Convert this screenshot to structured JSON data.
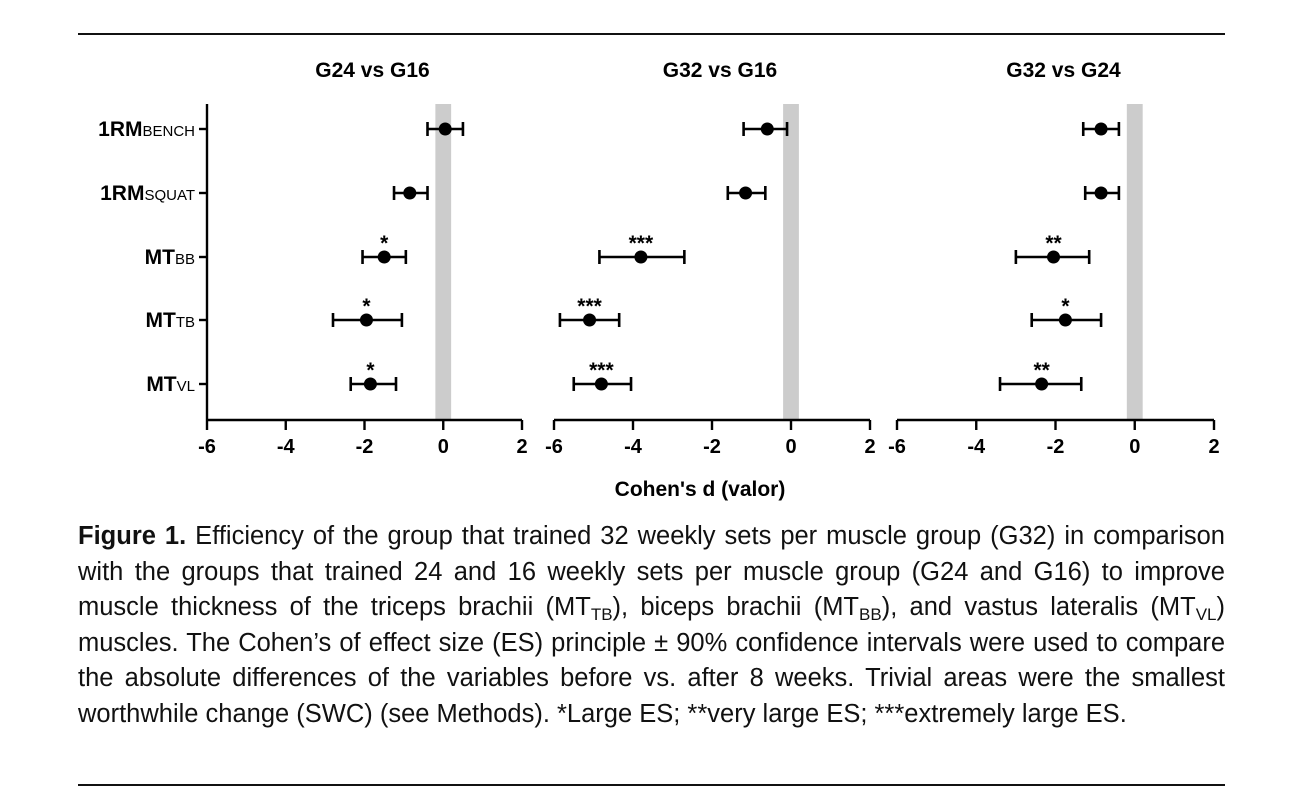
{
  "chart_data": {
    "type": "forest",
    "xlabel": "Cohen's d (valor)",
    "xlim": [
      -6,
      2
    ],
    "xticks": [
      "-6",
      "-4",
      "-2",
      "0",
      "2"
    ],
    "swc_band": [
      -0.2,
      0.2
    ],
    "rows": [
      {
        "main": "1RM",
        "sub": "BENCH"
      },
      {
        "main": "1RM",
        "sub": "SQUAT"
      },
      {
        "main": "MT",
        "sub": "BB"
      },
      {
        "main": "MT",
        "sub": "TB"
      },
      {
        "main": "MT",
        "sub": "VL"
      }
    ],
    "panels": [
      {
        "title": "G24 vs G16",
        "points": [
          {
            "d": 0.05,
            "lo": -0.4,
            "hi": 0.5,
            "sig": ""
          },
          {
            "d": -0.85,
            "lo": -1.25,
            "hi": -0.4,
            "sig": ""
          },
          {
            "d": -1.5,
            "lo": -2.05,
            "hi": -0.95,
            "sig": "*"
          },
          {
            "d": -1.95,
            "lo": -2.8,
            "hi": -1.05,
            "sig": "*"
          },
          {
            "d": -1.85,
            "lo": -2.35,
            "hi": -1.2,
            "sig": "*"
          }
        ]
      },
      {
        "title": "G32 vs G16",
        "points": [
          {
            "d": -0.6,
            "lo": -1.2,
            "hi": -0.1,
            "sig": ""
          },
          {
            "d": -1.15,
            "lo": -1.6,
            "hi": -0.65,
            "sig": ""
          },
          {
            "d": -3.8,
            "lo": -4.85,
            "hi": -2.7,
            "sig": "***"
          },
          {
            "d": -5.1,
            "lo": -5.85,
            "hi": -4.35,
            "sig": "***"
          },
          {
            "d": -4.8,
            "lo": -5.5,
            "hi": -4.05,
            "sig": "***"
          }
        ]
      },
      {
        "title": "G32 vs G24",
        "points": [
          {
            "d": -0.85,
            "lo": -1.3,
            "hi": -0.4,
            "sig": ""
          },
          {
            "d": -0.85,
            "lo": -1.25,
            "hi": -0.4,
            "sig": ""
          },
          {
            "d": -2.05,
            "lo": -3.0,
            "hi": -1.15,
            "sig": "**"
          },
          {
            "d": -1.75,
            "lo": -2.6,
            "hi": -0.85,
            "sig": "*"
          },
          {
            "d": -2.35,
            "lo": -3.4,
            "hi": -1.35,
            "sig": "**"
          }
        ]
      }
    ]
  },
  "caption": {
    "label": "Figure 1.",
    "t1": " Efficiency of the group that trained 32 weekly sets per muscle group (G32) in comparison with the groups that trained 24 and 16 weekly sets per muscle group (G24 and G16) to improve muscle thickness of the triceps brachii (MT",
    "s1": "TB",
    "t2": "), biceps brachii (MT",
    "s2": "BB",
    "t3": "), and vastus lateralis (MT",
    "s3": "VL",
    "t4": ") muscles. The Cohen’s of effect size (ES) principle ± 90% confidence intervals were used to compare the absolute differences of the variables before vs. after 8 weeks. Trivial areas were the smallest worthwhile change (SWC) (see Methods). *Large ES; **very large ES; ***extremely large ES."
  }
}
